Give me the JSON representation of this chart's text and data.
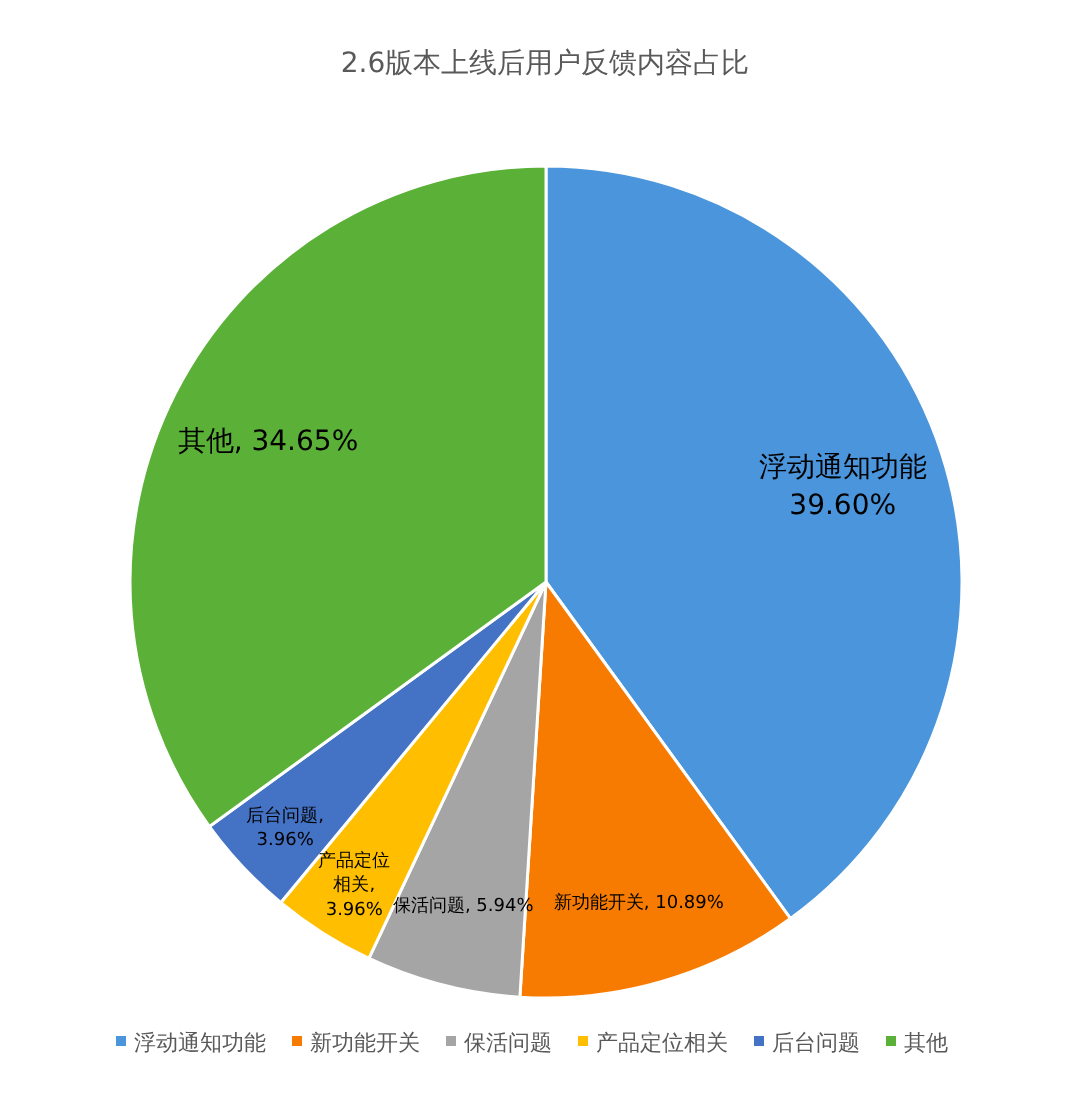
{
  "chart_data": {
    "type": "pie",
    "title": "2.6版本上线后用户反馈内容占比",
    "categories": [
      "浮动通知功能",
      "新功能开关",
      "保活问题",
      "产品定位相关",
      "后台问题",
      "其他"
    ],
    "values": [
      39.6,
      10.89,
      5.94,
      3.96,
      3.96,
      34.65
    ],
    "colors": [
      "#4a95db",
      "#f77b00",
      "#a5a5a5",
      "#ffbf00",
      "#4472c4",
      "#5bb137"
    ],
    "value_labels": [
      "浮动通知功能\n39.60%",
      "新功能开关, 10.89%",
      "保活问题, 5.94%",
      "产品定位相关,\n3.96%",
      "后台问题,\n3.96%",
      "其他, 34.65%"
    ],
    "legend": "bottom"
  }
}
